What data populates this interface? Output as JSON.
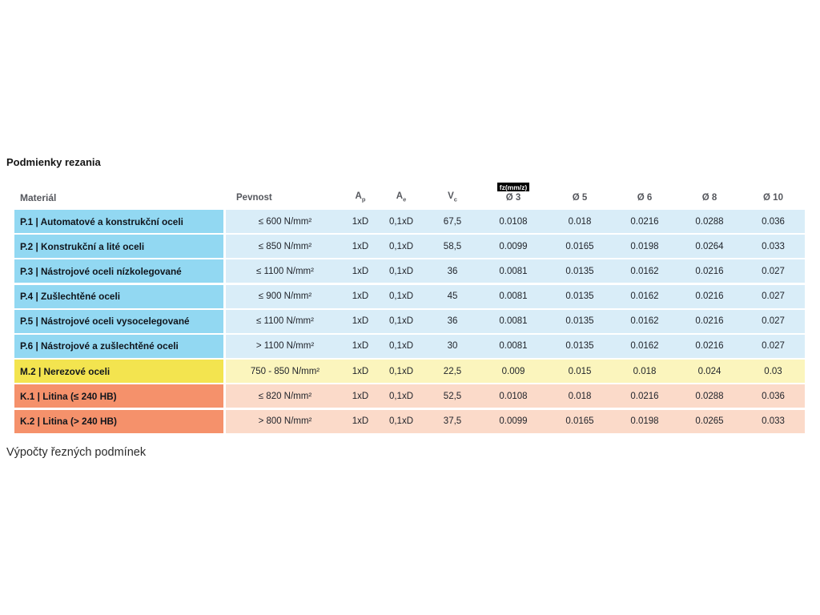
{
  "page": {
    "title": "Podmienky rezania",
    "footer": "Výpočty řezných podmínek"
  },
  "table": {
    "headers": {
      "material": "Materiál",
      "pevnost": "Pevnost",
      "ap_base": "A",
      "ap_sub": "p",
      "ae_base": "A",
      "ae_sub": "e",
      "vc_base": "V",
      "vc_sub": "c",
      "fz_badge": "fz(mm/z)",
      "d3": "Ø 3",
      "d5": "Ø 5",
      "d6": "Ø 6",
      "d8": "Ø 8",
      "d10": "Ø 10"
    },
    "themes": {
      "blue": {
        "label_bg": "#92d8f2",
        "data_bg": "#d9edf8"
      },
      "yellow": {
        "label_bg": "#f3e44f",
        "data_bg": "#fbf5bd"
      },
      "orange": {
        "label_bg": "#f5916b",
        "data_bg": "#fbdac9"
      }
    },
    "rows": [
      {
        "theme": "blue",
        "material": "P.1 | Automatové a konstrukční oceli",
        "pevnost": "≤ 600 N/mm²",
        "ap": "1xD",
        "ae": "0,1xD",
        "vc": "67,5",
        "d3": "0.0108",
        "d5": "0.018",
        "d6": "0.0216",
        "d8": "0.0288",
        "d10": "0.036"
      },
      {
        "theme": "blue",
        "material": "P.2 | Konstrukční a lité oceli",
        "pevnost": "≤ 850 N/mm²",
        "ap": "1xD",
        "ae": "0,1xD",
        "vc": "58,5",
        "d3": "0.0099",
        "d5": "0.0165",
        "d6": "0.0198",
        "d8": "0.0264",
        "d10": "0.033"
      },
      {
        "theme": "blue",
        "material": "P.3 | Nástrojové oceli nízkolegované",
        "pevnost": "≤ 1100 N/mm²",
        "ap": "1xD",
        "ae": "0,1xD",
        "vc": "36",
        "d3": "0.0081",
        "d5": "0.0135",
        "d6": "0.0162",
        "d8": "0.0216",
        "d10": "0.027"
      },
      {
        "theme": "blue",
        "material": "P.4 | Zušlechtěné oceli",
        "pevnost": "≤ 900 N/mm²",
        "ap": "1xD",
        "ae": "0,1xD",
        "vc": "45",
        "d3": "0.0081",
        "d5": "0.0135",
        "d6": "0.0162",
        "d8": "0.0216",
        "d10": "0.027"
      },
      {
        "theme": "blue",
        "material": "P.5 | Nástrojové oceli vysocelegované",
        "pevnost": "≤ 1100 N/mm²",
        "ap": "1xD",
        "ae": "0,1xD",
        "vc": "36",
        "d3": "0.0081",
        "d5": "0.0135",
        "d6": "0.0162",
        "d8": "0.0216",
        "d10": "0.027"
      },
      {
        "theme": "blue",
        "material": "P.6 | Nástrojové a zušlechtěné oceli",
        "pevnost": "> 1100 N/mm²",
        "ap": "1xD",
        "ae": "0,1xD",
        "vc": "30",
        "d3": "0.0081",
        "d5": "0.0135",
        "d6": "0.0162",
        "d8": "0.0216",
        "d10": "0.027"
      },
      {
        "theme": "yellow",
        "material": "M.2 | Nerezové oceli",
        "pevnost": "750 - 850 N/mm²",
        "ap": "1xD",
        "ae": "0,1xD",
        "vc": "22,5",
        "d3": "0.009",
        "d5": "0.015",
        "d6": "0.018",
        "d8": "0.024",
        "d10": "0.03"
      },
      {
        "theme": "orange",
        "material": "K.1 | Litina (≤ 240 HB)",
        "pevnost": "≤ 820 N/mm²",
        "ap": "1xD",
        "ae": "0,1xD",
        "vc": "52,5",
        "d3": "0.0108",
        "d5": "0.018",
        "d6": "0.0216",
        "d8": "0.0288",
        "d10": "0.036"
      },
      {
        "theme": "orange",
        "material": "K.2 | Litina (> 240 HB)",
        "pevnost": "> 800 N/mm²",
        "ap": "1xD",
        "ae": "0,1xD",
        "vc": "37,5",
        "d3": "0.0099",
        "d5": "0.0165",
        "d6": "0.0198",
        "d8": "0.0265",
        "d10": "0.033"
      }
    ]
  }
}
